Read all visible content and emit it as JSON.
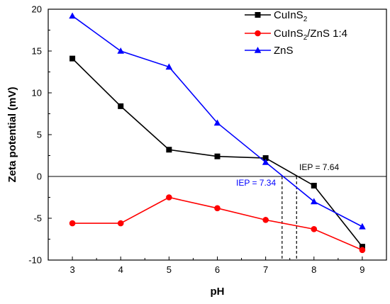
{
  "chart_data": {
    "type": "line",
    "xlabel": "pH",
    "ylabel": "Zeta potential (mV)",
    "xlim": [
      2.5,
      9.5
    ],
    "ylim": [
      -10,
      20
    ],
    "xticks": [
      "3",
      "4",
      "5",
      "6",
      "7",
      "8",
      "9"
    ],
    "yticks": [
      "-10",
      "-5",
      "0",
      "5",
      "10",
      "15",
      "20"
    ],
    "x": [
      3,
      4,
      5,
      6,
      7,
      8,
      9
    ],
    "series": [
      {
        "name": "CuInS2",
        "color": "#000000",
        "marker": "square",
        "values": [
          14.1,
          8.4,
          3.2,
          2.4,
          2.2,
          -1.1,
          -8.4
        ]
      },
      {
        "name": "CuInS2/ZnS 1:4",
        "color": "#ff0000",
        "marker": "circle",
        "values": [
          -5.6,
          -5.6,
          -2.5,
          -3.8,
          -5.2,
          -6.3,
          -8.8
        ]
      },
      {
        "name": "ZnS",
        "color": "#0000ff",
        "marker": "triangle",
        "values": [
          19.2,
          15.0,
          13.1,
          6.4,
          1.7,
          -3.0,
          -6.0
        ]
      }
    ],
    "legend": {
      "position": "top-right",
      "items": [
        {
          "base": "CuInS",
          "sub1": "2",
          "rest": "",
          "sub2": ""
        },
        {
          "base": "CuInS",
          "sub1": "2",
          "rest": "/ZnS 1:4",
          "sub2": ""
        },
        {
          "base": "ZnS",
          "sub1": "",
          "rest": "",
          "sub2": ""
        }
      ]
    },
    "annotations": [
      {
        "text": "IEP = 7.64",
        "x": 7.64,
        "color": "#000000"
      },
      {
        "text": "IEP = 7.34",
        "x": 7.34,
        "color": "#0000ff"
      }
    ],
    "grid": false,
    "zero_line": true
  }
}
